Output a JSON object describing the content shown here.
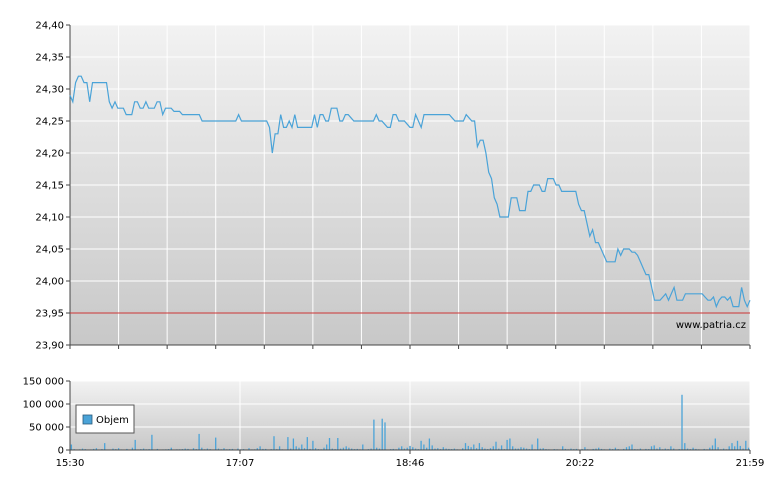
{
  "chart_data": [
    {
      "type": "line",
      "title": "",
      "xlabel": "",
      "ylabel": "",
      "ylim": [
        23.9,
        24.4
      ],
      "y_ticks": [
        "23,90",
        "23,95",
        "24,00",
        "24,05",
        "24,10",
        "24,15",
        "24,20",
        "24,25",
        "24,30",
        "24,35",
        "24,40"
      ],
      "x_ticks": [
        "15:30",
        "17:07",
        "18:46",
        "20:22",
        "21:59"
      ],
      "reference_line": 23.95,
      "watermark": "www.patria.cz",
      "grid": true,
      "colors": {
        "line": "#4aa3d8",
        "reference": "#cc3333"
      },
      "series": [
        {
          "values": [
            24.29,
            24.28,
            24.31,
            24.32,
            24.32,
            24.31,
            24.31,
            24.28,
            24.31,
            24.31,
            24.31,
            24.31,
            24.31,
            24.31,
            24.28,
            24.27,
            24.28,
            24.27,
            24.27,
            24.27,
            24.26,
            24.26,
            24.26,
            24.28,
            24.28,
            24.27,
            24.27,
            24.28,
            24.27,
            24.27,
            24.27,
            24.28,
            24.28,
            24.26,
            24.27,
            24.27,
            24.27,
            24.265,
            24.265,
            24.265,
            24.26,
            24.26,
            24.26,
            24.26,
            24.26,
            24.26,
            24.26,
            24.25,
            24.25,
            24.25,
            24.25,
            24.25,
            24.25,
            24.25,
            24.25,
            24.25,
            24.25,
            24.25,
            24.25,
            24.25,
            24.26,
            24.25,
            24.25,
            24.25,
            24.25,
            24.25,
            24.25,
            24.25,
            24.25,
            24.25,
            24.25,
            24.24,
            24.2,
            24.23,
            24.23,
            24.26,
            24.24,
            24.24,
            24.25,
            24.24,
            24.26,
            24.24,
            24.24,
            24.24,
            24.24,
            24.24,
            24.24,
            24.26,
            24.24,
            24.26,
            24.26,
            24.25,
            24.25,
            24.27,
            24.27,
            24.27,
            24.25,
            24.25,
            24.26,
            24.26,
            24.255,
            24.25,
            24.25,
            24.25,
            24.25,
            24.25,
            24.25,
            24.25,
            24.25,
            24.26,
            24.25,
            24.25,
            24.245,
            24.24,
            24.24,
            24.26,
            24.26,
            24.25,
            24.25,
            24.25,
            24.245,
            24.24,
            24.24,
            24.26,
            24.25,
            24.24,
            24.26,
            24.26,
            24.26,
            24.26,
            24.26,
            24.26,
            24.26,
            24.26,
            24.26,
            24.26,
            24.255,
            24.25,
            24.25,
            24.25,
            24.25,
            24.26,
            24.255,
            24.25,
            24.25,
            24.21,
            24.22,
            24.22,
            24.2,
            24.17,
            24.16,
            24.13,
            24.12,
            24.1,
            24.1,
            24.1,
            24.1,
            24.13,
            24.13,
            24.13,
            24.11,
            24.11,
            24.11,
            24.14,
            24.14,
            24.15,
            24.15,
            24.15,
            24.14,
            24.14,
            24.16,
            24.16,
            24.16,
            24.15,
            24.15,
            24.14,
            24.14,
            24.14,
            24.14,
            24.14,
            24.14,
            24.12,
            24.11,
            24.11,
            24.09,
            24.07,
            24.08,
            24.06,
            24.06,
            24.05,
            24.04,
            24.03,
            24.03,
            24.03,
            24.03,
            24.05,
            24.04,
            24.05,
            24.05,
            24.05,
            24.045,
            24.045,
            24.04,
            24.03,
            24.02,
            24.01,
            24.01,
            23.99,
            23.97,
            23.97,
            23.97,
            23.975,
            23.98,
            23.97,
            23.98,
            23.99,
            23.97,
            23.97,
            23.97,
            23.98,
            23.98,
            23.98,
            23.98,
            23.98,
            23.98,
            23.98,
            23.975,
            23.97,
            23.97,
            23.975,
            23.96,
            23.97,
            23.975,
            23.975,
            23.97,
            23.975,
            23.96,
            23.96,
            23.96,
            23.99,
            23.97,
            23.96,
            23.97
          ]
        }
      ]
    },
    {
      "type": "bar",
      "title": "",
      "xlabel": "",
      "ylabel": "",
      "ylim": [
        0,
        150000
      ],
      "y_ticks": [
        "0",
        "50 000",
        "100 000",
        "150 000"
      ],
      "x_ticks": [
        "15:30",
        "17:07",
        "18:46",
        "20:22",
        "21:59"
      ],
      "legend": {
        "position": "left",
        "entries": [
          "Objem"
        ]
      },
      "grid": true,
      "colors": {
        "bars": "#4aa3d8"
      },
      "series": [
        {
          "name": "Objem",
          "values": [
            12000,
            2000,
            1000,
            1500,
            3000,
            2000,
            800,
            1200,
            2500,
            4000,
            1000,
            2000,
            15000,
            1000,
            800,
            3000,
            2000,
            4000,
            1200,
            1000,
            2500,
            800,
            5000,
            22000,
            1200,
            2000,
            3000,
            1500,
            2000,
            33000,
            1000,
            2500,
            800,
            1200,
            1500,
            2000,
            5000,
            1000,
            1500,
            1500,
            2000,
            3000,
            2500,
            1000,
            4000,
            2000,
            35000,
            5000,
            1500,
            3000,
            2000,
            1000,
            27000,
            3000,
            1500,
            4000,
            1500,
            2000,
            2500,
            1000,
            3000,
            1500,
            2000,
            1000,
            4000,
            1200,
            1500,
            4000,
            8000,
            2500,
            2500,
            1000,
            2000,
            30000,
            2000,
            8000,
            1500,
            1000,
            28000,
            3000,
            25000,
            8000,
            5000,
            12000,
            4000,
            28000,
            2500,
            20000,
            4000,
            2000,
            1500,
            5000,
            12000,
            26000,
            3000,
            2000,
            26000,
            3000,
            5000,
            8000,
            5000,
            3000,
            2000,
            2500,
            1500,
            12000,
            1000,
            2000,
            3000,
            66000,
            5000,
            3000,
            68000,
            60000,
            1000,
            2000,
            2500,
            1500,
            5000,
            8000,
            3000,
            5000,
            9000,
            6000,
            3000,
            2000,
            20000,
            12000,
            5000,
            25000,
            10000,
            3000,
            4000,
            2000,
            6000,
            3000,
            2500,
            2000,
            3000,
            1500,
            1000,
            4000,
            15000,
            9000,
            6000,
            12000,
            4000,
            15000,
            6000,
            3000,
            2000,
            4000,
            8000,
            18000,
            3000,
            10000,
            2000,
            22000,
            25000,
            8000,
            3000,
            3000,
            6000,
            5000,
            3000,
            2000,
            12000,
            1500,
            25000,
            3000,
            4000,
            2000,
            1500,
            1000,
            2000,
            1500,
            1000,
            8000,
            2500,
            1500,
            3000,
            2000,
            2500,
            1000,
            2000,
            6000,
            1500,
            1000,
            2500,
            3000,
            5000,
            2500,
            1500,
            1000,
            3000,
            2000,
            5000,
            2000,
            1000,
            2500,
            6000,
            8000,
            12000,
            2000,
            1500,
            3000,
            1000,
            2500,
            2000,
            8000,
            10000,
            3000,
            6000,
            1500,
            3000,
            2000,
            8000,
            3000,
            1000,
            2000,
            120000,
            15000,
            3000,
            2000,
            5000,
            2500,
            1500,
            1000,
            2500,
            1500,
            5000,
            10000,
            25000,
            6000,
            1500,
            3000,
            1500,
            8000,
            15000,
            8000,
            20000,
            9000,
            3000,
            20000,
            5000
          ]
        }
      ]
    }
  ]
}
